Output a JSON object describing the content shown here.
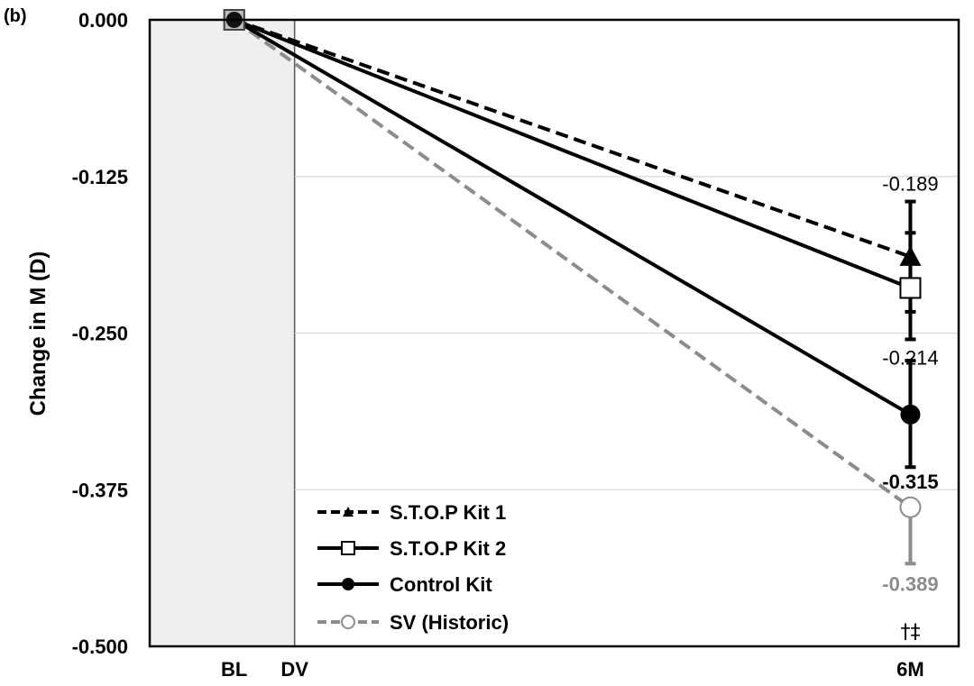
{
  "panel_label": "(b)",
  "chart_data": {
    "type": "line",
    "ylabel": "Change in M (D)",
    "ylim": [
      -0.5,
      0.0
    ],
    "yticks": [
      0.0,
      -0.125,
      -0.25,
      -0.375,
      -0.5
    ],
    "ytick_labels": [
      "0.000",
      "-0.125",
      "-0.250",
      "-0.375",
      "-0.500"
    ],
    "x_categories": [
      {
        "key": "BL",
        "label": "BL",
        "pos": 0.0
      },
      {
        "key": "DV",
        "label": "DV",
        "pos": 0.5
      },
      {
        "key": "6M",
        "label": "6M",
        "pos": 5.6
      }
    ],
    "x_range": [
      -0.7,
      6.0
    ],
    "shaded_region": {
      "from": -0.7,
      "to": 0.5,
      "color": "#efefef"
    },
    "series": [
      {
        "key": "kit1",
        "name": "S.T.O.P Kit 1",
        "color": "#000000",
        "dash": "dashed",
        "marker": "triangle",
        "points": [
          {
            "x": "BL",
            "y": 0.0
          },
          {
            "x": "6M",
            "y": -0.189
          }
        ],
        "error_6m": [
          -0.145,
          -0.233
        ],
        "label": "-0.189",
        "label_color": "#000000",
        "label_bold": false
      },
      {
        "key": "kit2",
        "name": "S.T.O.P Kit 2",
        "color": "#000000",
        "dash": "solid",
        "marker": "square",
        "points": [
          {
            "x": "BL",
            "y": 0.0
          },
          {
            "x": "6M",
            "y": -0.214
          }
        ],
        "error_6m": [
          -0.17,
          -0.255
        ],
        "label": "-0.214",
        "label_color": "#000000",
        "label_bold": false
      },
      {
        "key": "control",
        "name": "Control Kit",
        "color": "#000000",
        "dash": "solid",
        "marker": "circle",
        "points": [
          {
            "x": "BL",
            "y": 0.0
          },
          {
            "x": "6M",
            "y": -0.315
          }
        ],
        "error_6m": [
          -0.272,
          -0.357
        ],
        "label": "-0.315",
        "label_color": "#000000",
        "label_bold": true
      },
      {
        "key": "sv",
        "name": "SV (Historic)",
        "color": "#8c8c8c",
        "dash": "dashed",
        "marker": "open-circle",
        "points": [
          {
            "x": "BL",
            "y": 0.0
          },
          {
            "x": "6M",
            "y": -0.389
          }
        ],
        "error_6m": [
          -0.389,
          -0.434
        ],
        "label": "-0.389",
        "label_color": "#8c8c8c",
        "label_bold": true
      }
    ],
    "significance_marks": "†‡",
    "legend": {
      "position": "bottom-center"
    }
  }
}
